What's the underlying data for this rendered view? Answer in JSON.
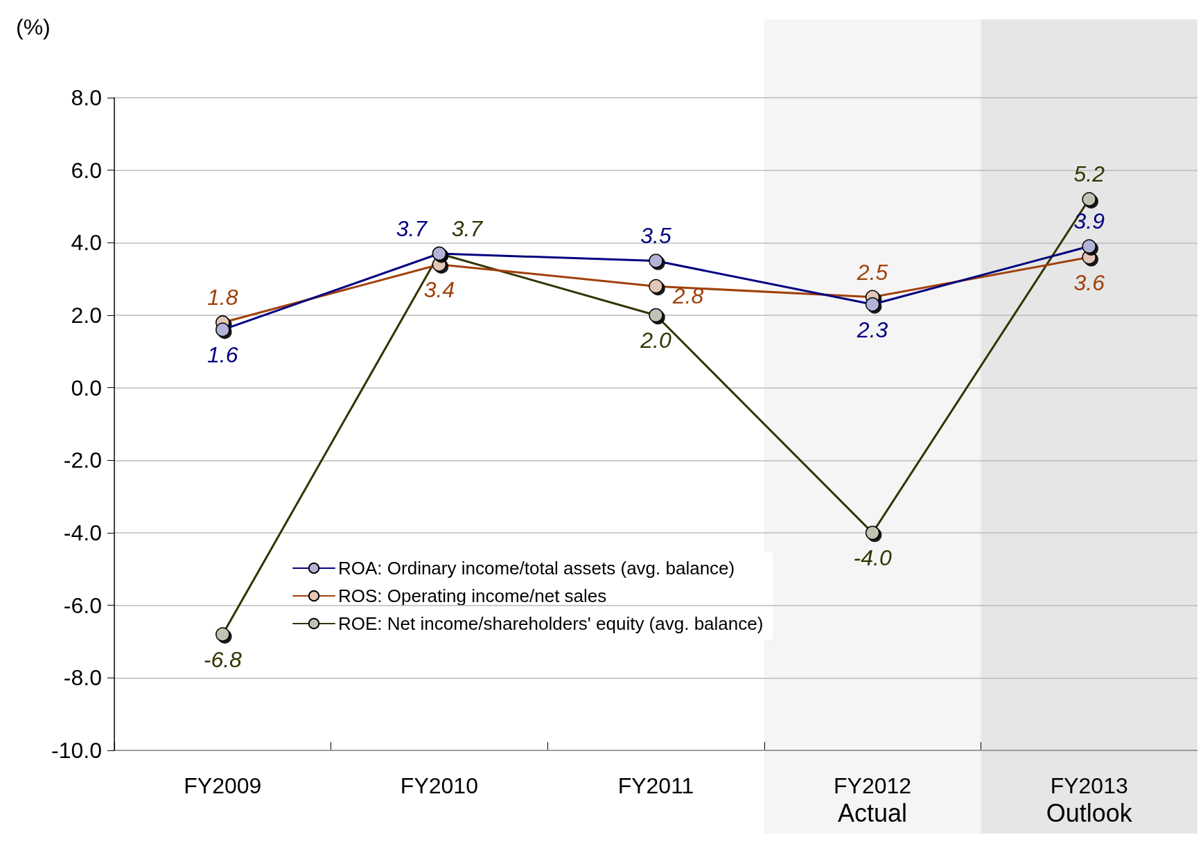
{
  "chart_data": {
    "type": "line",
    "ylabel": "(%)",
    "categories": [
      "FY2009",
      "FY2010",
      "FY2011",
      "FY2012",
      "FY2013"
    ],
    "series": [
      {
        "name": "ROA: Ordinary income/total assets (avg. balance)",
        "color": "#000080",
        "values": [
          1.6,
          3.7,
          3.5,
          2.3,
          3.9
        ],
        "value_labels": [
          "1.6",
          "3.7",
          "3.5",
          "2.3",
          "3.9"
        ]
      },
      {
        "name": "ROS: Operating income/net sales",
        "color": "#a0400a",
        "values": [
          1.8,
          3.4,
          2.8,
          2.5,
          3.6
        ],
        "value_labels": [
          "1.8",
          "3.4",
          "2.8",
          "2.5",
          "3.6"
        ]
      },
      {
        "name": "ROE: Net income/shareholders' equity (avg. balance)",
        "color": "#333300",
        "values": [
          -6.8,
          3.7,
          2.0,
          -4.0,
          5.2
        ],
        "value_labels": [
          "-6.8",
          "3.7",
          "2.0",
          "-4.0",
          "5.2"
        ]
      }
    ],
    "ylim": [
      -10,
      8
    ],
    "yticks": [
      {
        "value": -10,
        "label": "-10.0"
      },
      {
        "value": -8,
        "label": "-8.0"
      },
      {
        "value": -6,
        "label": "-6.0"
      },
      {
        "value": -4,
        "label": "-4.0"
      },
      {
        "value": -2,
        "label": "-2.0"
      },
      {
        "value": 0,
        "label": "0.0"
      },
      {
        "value": 2,
        "label": "2.0"
      },
      {
        "value": 4,
        "label": "4.0"
      },
      {
        "value": 6,
        "label": "6.0"
      },
      {
        "value": 8,
        "label": "8.0"
      }
    ],
    "bands": [
      {
        "axis": "x",
        "from": "FY2012",
        "to": "FY2012",
        "label": "Actual",
        "color": "#f5f5f5"
      },
      {
        "axis": "x",
        "from": "FY2013",
        "to": "FY2013",
        "label": "Outlook",
        "color": "#e6e6e6"
      }
    ],
    "grid": "y",
    "legend": "bottom left",
    "marker": "circle",
    "line_style": "solid"
  }
}
